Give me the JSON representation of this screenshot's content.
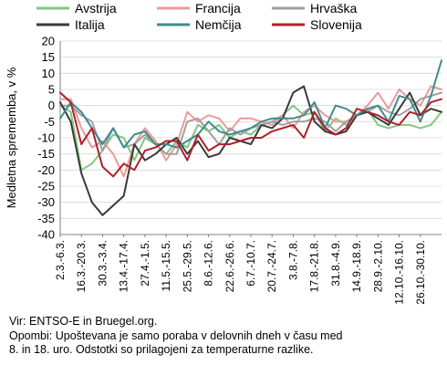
{
  "chart_data": {
    "type": "line",
    "ylabel": "Medletna sprememba, v %",
    "ylim": [
      -40,
      20
    ],
    "yticks": [
      20,
      15,
      10,
      5,
      0,
      -5,
      -10,
      -15,
      -20,
      -25,
      -30,
      -35,
      -40
    ],
    "grid": "horizontal",
    "legend_position": "top",
    "x_tick_labels": [
      "2.3.-6.3.",
      "16.3.-20.3.",
      "30.3.-3.4.",
      "13.4.-17.4.",
      "27.4.-1.5.",
      "11.5.-15.5.",
      "25.5.-29.5.",
      "8.6.-12.6.",
      "22.6.-26.6.",
      "6.7.-10.7.",
      "20.7.-24.7.",
      "3.8.-7.8.",
      "17.8.-21.8.",
      "31.8.-4.9.",
      "14.9.-18.9.",
      "28.9.-2.10.",
      "12.10.-16.10.",
      "26.10.-30.10."
    ],
    "series": [
      {
        "name": "Avstrija",
        "color": "#7fc97f",
        "values": [
          0,
          -2,
          -20,
          -18,
          -14,
          -9,
          -10,
          -17,
          -10,
          -12,
          -15,
          -11,
          -13,
          -6,
          -8,
          -6,
          -10,
          -8,
          -9,
          -6,
          -5,
          -3,
          0,
          -3,
          -2,
          -8,
          -4,
          -6,
          -3,
          -1,
          -6,
          -7,
          -6,
          -6,
          -7,
          -6,
          -2
        ]
      },
      {
        "name": "Francija",
        "color": "#ec9a98",
        "values": [
          2,
          2,
          -7,
          -13,
          -11,
          -15,
          -22,
          -12,
          -7,
          -11,
          -17,
          -12,
          -2,
          -5,
          -3,
          -4,
          -8,
          -4,
          -4,
          -5,
          -6,
          -3,
          -7,
          -2,
          0,
          -3,
          -5,
          -5,
          -3,
          0,
          4,
          -1,
          5,
          2,
          0,
          6,
          5
        ]
      },
      {
        "name": "Hrvaška",
        "color": "#a0a0a0",
        "values": [
          0,
          0,
          -3,
          -5,
          -14,
          -7,
          -13,
          -12,
          -9,
          -12,
          -15,
          -15,
          -5,
          -4,
          -8,
          -12,
          -7,
          -9,
          -7,
          -6,
          -5,
          -6,
          -5,
          -5,
          -4,
          -5,
          -8,
          -5,
          -3,
          -2,
          0,
          -2,
          -3,
          -1,
          2,
          3,
          4
        ]
      },
      {
        "name": "Italija",
        "color": "#3a3a3a",
        "values": [
          1,
          -5,
          -21,
          -30,
          -34,
          -31,
          -28,
          -12,
          -17,
          -15,
          -12,
          -10,
          -15,
          -11,
          -16,
          -15,
          -10,
          -11,
          -12,
          -6,
          -7,
          -4,
          4,
          6,
          -5,
          -8,
          -9,
          -8,
          -3,
          -2,
          -4,
          -6,
          -1,
          4,
          -3,
          -1,
          -2
        ]
      },
      {
        "name": "Nemčija",
        "color": "#3e8c8f",
        "values": [
          -4,
          1,
          -2,
          -7,
          -12,
          -7,
          -13,
          -9,
          -8,
          -12,
          -12,
          -13,
          -11,
          -9,
          -5,
          -8,
          -9,
          -8,
          -7,
          -5,
          -4,
          -4,
          -4,
          -3,
          1,
          -7,
          0,
          -1,
          -3,
          -1,
          0,
          -5,
          3,
          2,
          -5,
          3,
          14
        ]
      },
      {
        "name": "Slovenija",
        "color": "#b0202a",
        "values": [
          4,
          1,
          -12,
          -7,
          -19,
          -22,
          -18,
          -20,
          -14,
          -13,
          -11,
          -11,
          -17,
          -9,
          -14,
          -12,
          -12,
          -11,
          -10,
          -10,
          -8,
          -7,
          -6,
          -10,
          -2,
          -7,
          -9,
          -7,
          -1,
          -2,
          -3,
          -5,
          -6,
          -2,
          -3,
          1,
          2
        ]
      }
    ]
  },
  "footer": {
    "source": "Vir: ENTSO-E in Bruegel.org.",
    "note_line1": "Opombi: Upoštevana je samo poraba v delovnih dneh v času med",
    "note_line2": "8. in 18. uro. Odstotki so prilagojeni za temperaturne razlike."
  }
}
